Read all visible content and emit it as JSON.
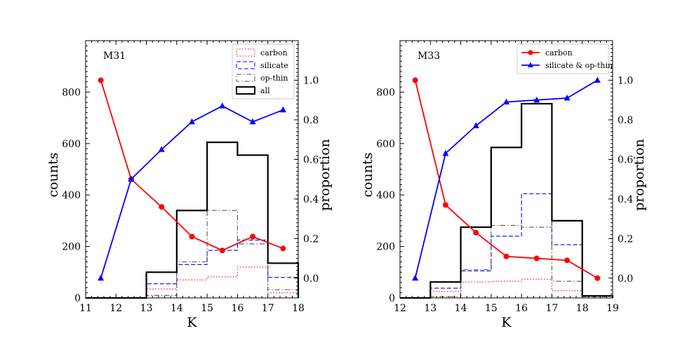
{
  "chart_data": [
    {
      "type": "bar",
      "id": "m31",
      "title": "M31",
      "xlabel": "K",
      "ylabel": "counts",
      "y2label": "proportion",
      "xlim": [
        11,
        18
      ],
      "ylim": [
        0,
        1000
      ],
      "y2lim": [
        -0.1,
        1.2
      ],
      "x_ticks": [
        11,
        12,
        13,
        14,
        15,
        16,
        17,
        18
      ],
      "y_ticks": [
        0,
        200,
        400,
        600,
        800
      ],
      "y2_ticks": [
        0.0,
        0.2,
        0.4,
        0.6,
        0.8,
        1.0
      ],
      "bin_edges": [
        11,
        12,
        13,
        14,
        15,
        16,
        17,
        18
      ],
      "histograms": [
        {
          "name": "carbon",
          "color": "#ff0000",
          "style": "dotted",
          "counts": [
            0,
            0,
            35,
            70,
            82,
            120,
            20
          ]
        },
        {
          "name": "silicate",
          "color": "#0000ff",
          "style": "dashed",
          "counts": [
            0,
            0,
            55,
            130,
            185,
            225,
            80
          ]
        },
        {
          "name": "op-thin",
          "color": "#555555",
          "style": "dashdot",
          "counts": [
            0,
            0,
            10,
            140,
            340,
            210,
            32
          ]
        },
        {
          "name": "all",
          "color": "#000000",
          "style": "solid",
          "counts": [
            0,
            0,
            100,
            340,
            605,
            555,
            135
          ]
        }
      ],
      "proportion_series": [
        {
          "name": "carbon",
          "color": "#ff0000",
          "marker": "circle",
          "x": [
            11.5,
            12.5,
            13.5,
            14.5,
            15.5,
            16.5,
            17.5
          ],
          "y": [
            1.0,
            0.5,
            0.36,
            0.21,
            0.14,
            0.21,
            0.15
          ]
        },
        {
          "name": "silicate & op-thin",
          "color": "#0000ff",
          "marker": "triangle",
          "x": [
            11.5,
            12.5,
            13.5,
            14.5,
            15.5,
            16.5,
            17.5
          ],
          "y": [
            0.0,
            0.5,
            0.65,
            0.79,
            0.87,
            0.79,
            0.85
          ]
        }
      ],
      "legend": [
        {
          "label": "carbon",
          "color": "#ff0000",
          "style": "dotted"
        },
        {
          "label": "silicate",
          "color": "#0000ff",
          "style": "dashed"
        },
        {
          "label": "op-thin",
          "color": "#555555",
          "style": "dashdot"
        },
        {
          "label": "all",
          "color": "#000000",
          "style": "solid"
        }
      ],
      "legend_position": "top-right"
    },
    {
      "type": "bar",
      "id": "m33",
      "title": "M33",
      "xlabel": "K",
      "ylabel": "counts",
      "y2label": "proportion",
      "xlim": [
        12,
        19
      ],
      "ylim": [
        0,
        1000
      ],
      "y2lim": [
        -0.1,
        1.2
      ],
      "x_ticks": [
        12,
        13,
        14,
        15,
        16,
        17,
        18,
        19
      ],
      "y_ticks": [
        0,
        200,
        400,
        600,
        800
      ],
      "y2_ticks": [
        0.0,
        0.2,
        0.4,
        0.6,
        0.8,
        1.0
      ],
      "bin_edges": [
        12,
        13,
        14,
        15,
        16,
        17,
        18,
        19
      ],
      "histograms": [
        {
          "name": "carbon",
          "color": "#ff0000",
          "style": "dotted",
          "counts": [
            0,
            25,
            62,
            65,
            73,
            28,
            0
          ]
        },
        {
          "name": "silicate",
          "color": "#0000ff",
          "style": "dashed",
          "counts": [
            0,
            38,
            105,
            240,
            405,
            207,
            0
          ]
        },
        {
          "name": "op-thin",
          "color": "#555555",
          "style": "dashdot",
          "counts": [
            0,
            5,
            110,
            282,
            275,
            65,
            5
          ]
        },
        {
          "name": "all",
          "color": "#000000",
          "style": "solid",
          "counts": [
            0,
            62,
            275,
            585,
            755,
            300,
            8
          ]
        }
      ],
      "proportion_series": [
        {
          "name": "carbon",
          "color": "#ff0000",
          "marker": "circle",
          "x": [
            12.5,
            13.5,
            14.5,
            15.5,
            16.5,
            17.5,
            18.5
          ],
          "y": [
            1.0,
            0.37,
            0.23,
            0.11,
            0.1,
            0.09,
            0.0
          ]
        },
        {
          "name": "silicate & op-thin",
          "color": "#0000ff",
          "marker": "triangle",
          "x": [
            12.5,
            13.5,
            14.5,
            15.5,
            16.5,
            17.5,
            18.5
          ],
          "y": [
            0.0,
            0.63,
            0.77,
            0.89,
            0.9,
            0.91,
            1.0
          ]
        }
      ],
      "legend": [
        {
          "label": "carbon",
          "color": "#ff0000",
          "style": "line-circle"
        },
        {
          "label": "silicate & op-thin",
          "color": "#0000ff",
          "style": "line-triangle"
        }
      ],
      "legend_position": "top-right"
    }
  ]
}
